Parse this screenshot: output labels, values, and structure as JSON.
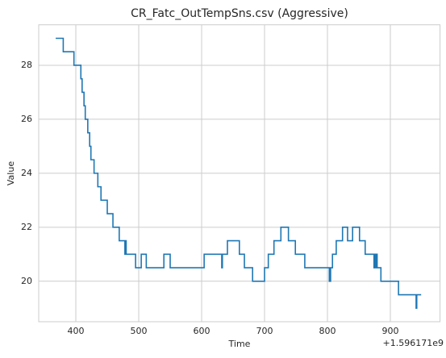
{
  "chart_data": {
    "type": "line",
    "step": "post",
    "title": "CR_Fatc_OutTempSns.csv (Aggressive)",
    "x_label": "Time",
    "y_label": "Value",
    "x_offset_label": "+1.596171e9",
    "series": [
      {
        "name": "CR_Fatc_OutTempSns",
        "color": "#1f77b4",
        "x": [
          368,
          380,
          397,
          408,
          410,
          413,
          415,
          419,
          422,
          424,
          429,
          435,
          440,
          450,
          459,
          469,
          478,
          479,
          480,
          495,
          504,
          512,
          540,
          550,
          604,
          632,
          633,
          641,
          660,
          668,
          681,
          700,
          706,
          715,
          726,
          738,
          749,
          764,
          803,
          805,
          808,
          814,
          824,
          832,
          840,
          851,
          860,
          874,
          876,
          877,
          878,
          879,
          885,
          913,
          941,
          942,
          949
        ],
        "values": [
          29,
          28.5,
          28,
          27.5,
          27,
          26.5,
          26,
          25.5,
          25,
          24.5,
          24,
          23.5,
          23,
          22.5,
          22,
          21.5,
          21,
          21.5,
          21,
          20.5,
          21,
          20.5,
          21,
          20.5,
          21,
          20.5,
          21,
          21.5,
          21,
          20.5,
          20,
          20.5,
          21,
          21.5,
          22,
          21.5,
          21,
          20.5,
          20,
          20.5,
          21,
          21.5,
          22,
          21.5,
          22,
          21.5,
          21,
          20.5,
          21,
          20.5,
          21,
          20.5,
          20,
          19.5,
          19,
          19.5,
          19.5
        ]
      }
    ],
    "xlim": [
      341,
      979
    ],
    "xticks": [
      400,
      500,
      600,
      700,
      800,
      900
    ],
    "ylim": [
      18.5,
      29.5
    ],
    "yticks": [
      20,
      22,
      24,
      26,
      28
    ],
    "grid": true
  }
}
